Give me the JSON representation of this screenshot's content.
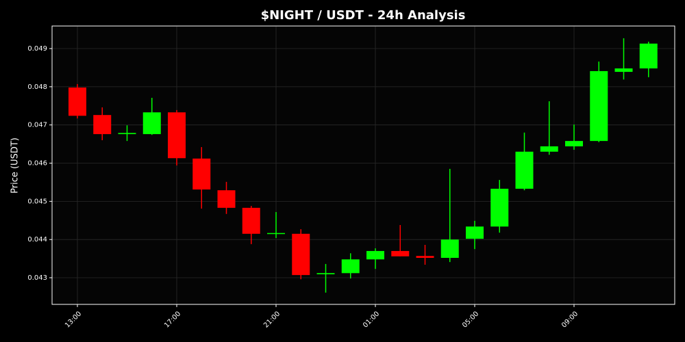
{
  "chart_data": {
    "type": "candlestick",
    "title": "$NIGHT / USDT - 24h Analysis",
    "ylabel": "Price (USDT)",
    "categories": [
      "13:00",
      null,
      null,
      null,
      "17:00",
      null,
      null,
      null,
      "21:00",
      null,
      null,
      null,
      "01:00",
      null,
      null,
      null,
      "05:00",
      null,
      null,
      null,
      "09:00",
      null,
      null,
      null
    ],
    "open": [
      0.04798,
      0.04726,
      0.04676,
      0.04676,
      0.04733,
      0.04612,
      0.04529,
      0.04483,
      0.04415,
      0.04415,
      0.04309,
      0.04312,
      0.04348,
      0.0437,
      0.04357,
      0.04352,
      0.04402,
      0.04434,
      0.04533,
      0.0463,
      0.04644,
      0.04658,
      0.04839,
      0.04848
    ],
    "high": [
      0.04807,
      0.04746,
      0.04699,
      0.04771,
      0.04739,
      0.04642,
      0.04551,
      0.04488,
      0.04472,
      0.04427,
      0.04336,
      0.04364,
      0.04377,
      0.04438,
      0.04386,
      0.04585,
      0.04449,
      0.04556,
      0.0468,
      0.04762,
      0.04701,
      0.04866,
      0.04927,
      0.04918
    ],
    "low": [
      0.04717,
      0.0466,
      0.04658,
      0.04674,
      0.04594,
      0.04481,
      0.04467,
      0.04388,
      0.04404,
      0.04296,
      0.04261,
      0.04298,
      0.04323,
      0.04356,
      0.04334,
      0.04341,
      0.04375,
      0.04418,
      0.04529,
      0.04622,
      0.04635,
      0.04655,
      0.04819,
      0.04825
    ],
    "close": [
      0.04724,
      0.04676,
      0.04679,
      0.04733,
      0.04613,
      0.04531,
      0.04483,
      0.04415,
      0.04417,
      0.04307,
      0.04312,
      0.04348,
      0.0437,
      0.04356,
      0.04352,
      0.044,
      0.04434,
      0.04533,
      0.0463,
      0.04644,
      0.04658,
      0.04841,
      0.04848,
      0.04913
    ],
    "up_color": "#00ff00",
    "down_color": "#ff0000",
    "ylim": [
      0.042302,
      0.049591
    ],
    "yticks": [
      0.043,
      0.044,
      0.045,
      0.046,
      0.047,
      0.048,
      0.049
    ],
    "grid": true
  }
}
